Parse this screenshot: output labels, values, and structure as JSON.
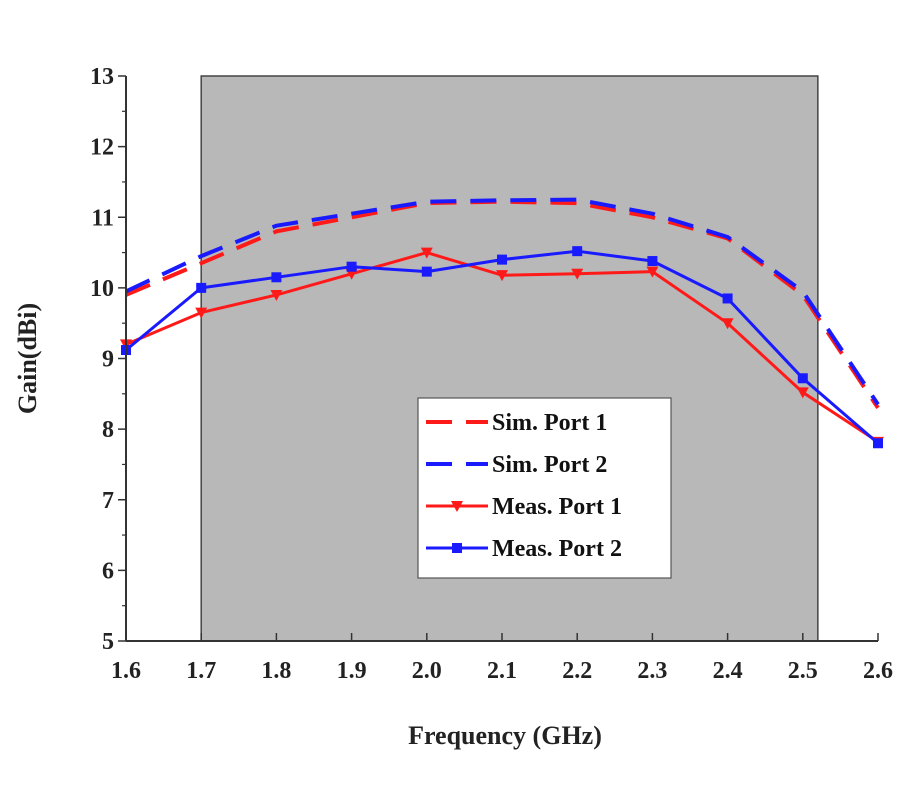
{
  "chart_data": {
    "type": "line",
    "title": "",
    "xlabel": "Frequency (GHz)",
    "ylabel": "Gain(dBi)",
    "xlim": [
      1.6,
      2.6
    ],
    "ylim": [
      5,
      13
    ],
    "x_ticks": [
      "1.6",
      "1.7",
      "1.8",
      "1.9",
      "2.0",
      "2.1",
      "2.2",
      "2.3",
      "2.4",
      "2.5",
      "2.6"
    ],
    "y_ticks": [
      "5",
      "6",
      "7",
      "8",
      "9",
      "10",
      "11",
      "12",
      "13"
    ],
    "grid": false,
    "legend_position": "lower-middle-right",
    "shaded_region": {
      "x_start": 1.7,
      "x_end": 2.52,
      "color": "#b8b8b8"
    },
    "x": [
      1.6,
      1.7,
      1.8,
      1.9,
      2.0,
      2.1,
      2.2,
      2.3,
      2.4,
      2.5,
      2.6
    ],
    "series": [
      {
        "name": "Sim. Port 1",
        "color": "#ff1a1a",
        "style": "dashed",
        "marker": "none",
        "values": [
          9.9,
          10.35,
          10.8,
          11.0,
          11.2,
          11.22,
          11.2,
          11.0,
          10.7,
          9.9,
          8.3
        ]
      },
      {
        "name": "Sim. Port 2",
        "color": "#1a1aff",
        "style": "dashed",
        "marker": "none",
        "values": [
          9.95,
          10.45,
          10.88,
          11.05,
          11.22,
          11.24,
          11.25,
          11.05,
          10.72,
          9.95,
          8.35
        ]
      },
      {
        "name": "Meas. Port 1",
        "color": "#ff1a1a",
        "style": "solid",
        "marker": "triangle-down",
        "values": [
          9.2,
          9.65,
          9.9,
          10.2,
          10.5,
          10.18,
          10.2,
          10.23,
          9.5,
          8.52,
          7.82
        ]
      },
      {
        "name": "Meas. Port 2",
        "color": "#1a1aff",
        "style": "solid",
        "marker": "square",
        "values": [
          9.12,
          10.0,
          10.15,
          10.3,
          10.23,
          10.4,
          10.52,
          10.38,
          9.85,
          8.72,
          7.8
        ]
      }
    ]
  }
}
